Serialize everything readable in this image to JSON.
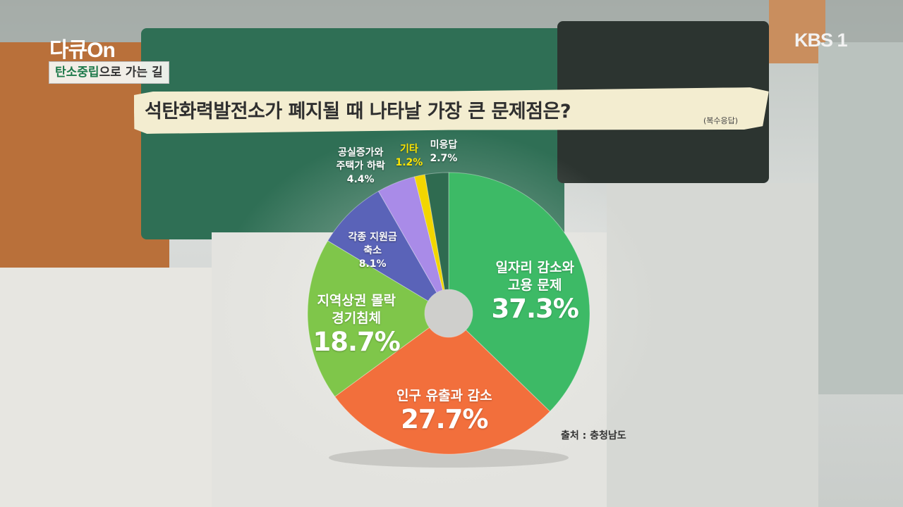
{
  "broadcast": {
    "program_logo": "다큐On",
    "channel_logo": "KBS 1",
    "episode_tag_highlight": "탄소중립",
    "episode_tag_rest": "으로 가는 길"
  },
  "colors": {
    "accent_green": "#1f7a4b",
    "banner": "#f3edd0"
  },
  "chart_data": {
    "type": "pie",
    "style": "donut",
    "title": "석탄화력발전소가 폐지될 때 나타날 가장 큰 문제점은?",
    "subtitle": "(복수응답)",
    "source": "출처 : 충청남도",
    "slices": [
      {
        "label_lines": [
          "일자리 감소와",
          "고용 문제"
        ],
        "value": 37.3,
        "value_label": "37.3%",
        "color": "#3dba66"
      },
      {
        "label_lines": [
          "인구 유출과 감소"
        ],
        "value": 27.7,
        "value_label": "27.7%",
        "color": "#f26f3c"
      },
      {
        "label_lines": [
          "지역상권 몰락",
          "경기침체"
        ],
        "value": 18.7,
        "value_label": "18.7%",
        "color": "#7fc64a"
      },
      {
        "label_lines": [
          "각종 지원금",
          "축소"
        ],
        "value": 8.1,
        "value_label": "8.1%",
        "color": "#5a63b8"
      },
      {
        "label_lines": [
          "공실증가와",
          "주택가 하락"
        ],
        "value": 4.4,
        "value_label": "4.4%",
        "color": "#a98be8"
      },
      {
        "label_lines": [
          "기타"
        ],
        "value": 1.2,
        "value_label": "1.2%",
        "color": "#f2d600"
      },
      {
        "label_lines": [
          "미응답"
        ],
        "value": 2.7,
        "value_label": "2.7%",
        "color": "#2f6b50"
      }
    ]
  }
}
